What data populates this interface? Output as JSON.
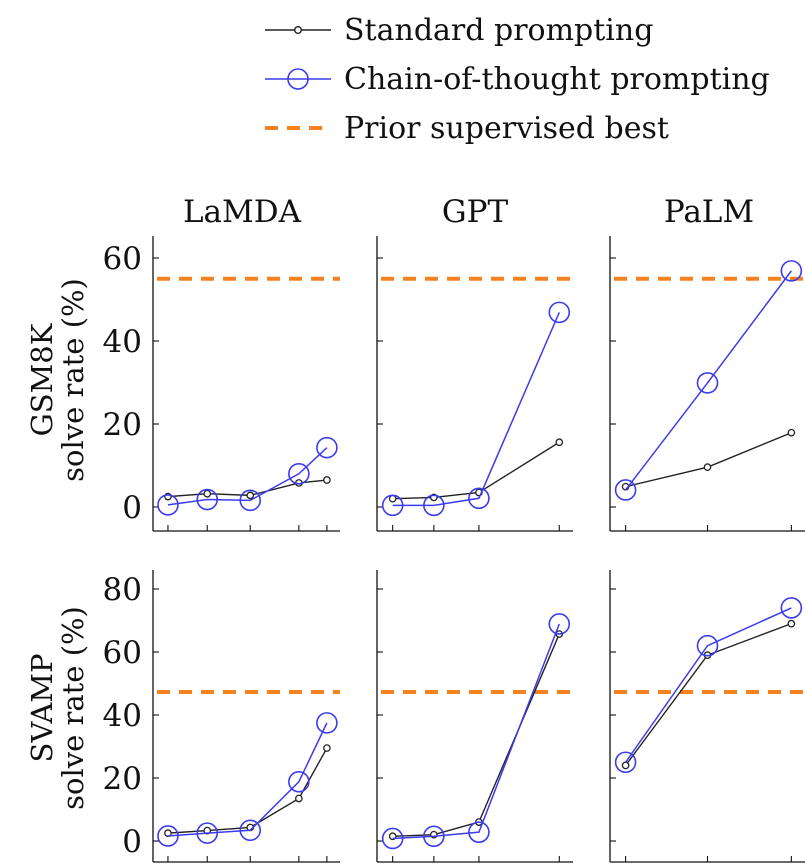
{
  "legend": {
    "standard": "Standard prompting",
    "cot": "Chain-of-thought prompting",
    "prior": "Prior supervised best"
  },
  "columns": [
    "LaMDA",
    "GPT",
    "PaLM"
  ],
  "rows": [
    {
      "dataset": "GSM8K",
      "ylabel": "solve rate (%)"
    },
    {
      "dataset": "SVAMP",
      "ylabel": "solve rate (%)"
    }
  ],
  "colors": {
    "standard": "#222222",
    "cot": "#3b3bf0",
    "prior": "#f58220",
    "axis": "#111111"
  },
  "chart_data": [
    {
      "type": "line",
      "row": "GSM8K",
      "column": "LaMDA",
      "ylim": [
        0,
        65
      ],
      "yticks": [
        0,
        20,
        40,
        60
      ],
      "x": [
        0.08,
        0.29,
        0.52,
        0.78,
        0.93
      ],
      "series": [
        {
          "name": "Standard prompting",
          "values": [
            2.5,
            3.2,
            2.8,
            5.8,
            6.5
          ]
        },
        {
          "name": "Chain-of-thought prompting",
          "values": [
            0.5,
            1.8,
            1.6,
            8.0,
            14.3
          ]
        }
      ],
      "prior_best": 55
    },
    {
      "type": "line",
      "row": "GSM8K",
      "column": "GPT",
      "ylim": [
        0,
        65
      ],
      "yticks": [
        0,
        20,
        40,
        60
      ],
      "x": [
        0.08,
        0.29,
        0.52,
        0.93
      ],
      "series": [
        {
          "name": "Standard prompting",
          "values": [
            2.0,
            2.3,
            3.5,
            15.6
          ]
        },
        {
          "name": "Chain-of-thought prompting",
          "values": [
            0.4,
            0.4,
            2.1,
            46.9
          ]
        }
      ],
      "prior_best": 55
    },
    {
      "type": "line",
      "row": "GSM8K",
      "column": "PaLM",
      "ylim": [
        0,
        65
      ],
      "yticks": [
        0,
        20,
        40,
        60
      ],
      "x": [
        0.08,
        0.5,
        0.93
      ],
      "series": [
        {
          "name": "Standard prompting",
          "values": [
            4.9,
            9.6,
            17.9
          ]
        },
        {
          "name": "Chain-of-thought prompting",
          "values": [
            4.1,
            29.9,
            56.9
          ]
        }
      ],
      "prior_best": 55
    },
    {
      "type": "line",
      "row": "SVAMP",
      "column": "LaMDA",
      "ylim": [
        0,
        85
      ],
      "yticks": [
        0,
        20,
        40,
        60,
        80
      ],
      "x": [
        0.08,
        0.29,
        0.52,
        0.78,
        0.93
      ],
      "series": [
        {
          "name": "Standard prompting",
          "values": [
            2.5,
            3.3,
            4.3,
            13.5,
            29.5
          ]
        },
        {
          "name": "Chain-of-thought prompting",
          "values": [
            1.6,
            2.5,
            3.4,
            18.8,
            37.5
          ]
        }
      ],
      "prior_best": 47.3
    },
    {
      "type": "line",
      "row": "SVAMP",
      "column": "GPT",
      "ylim": [
        0,
        85
      ],
      "yticks": [
        0,
        20,
        40,
        60,
        80
      ],
      "x": [
        0.08,
        0.29,
        0.52,
        0.93
      ],
      "series": [
        {
          "name": "Standard prompting",
          "values": [
            1.5,
            2.0,
            6.0,
            65.7
          ]
        },
        {
          "name": "Chain-of-thought prompting",
          "values": [
            0.8,
            1.5,
            2.8,
            68.9
          ]
        }
      ],
      "prior_best": 47.3
    },
    {
      "type": "line",
      "row": "SVAMP",
      "column": "PaLM",
      "ylim": [
        0,
        85
      ],
      "yticks": [
        0,
        20,
        40,
        60,
        80
      ],
      "x": [
        0.08,
        0.5,
        0.93
      ],
      "series": [
        {
          "name": "Standard prompting",
          "values": [
            24.0,
            59.0,
            69.0
          ]
        },
        {
          "name": "Chain-of-thought prompting",
          "values": [
            25.0,
            62.0,
            74.0
          ]
        }
      ],
      "prior_best": 47.3
    }
  ]
}
